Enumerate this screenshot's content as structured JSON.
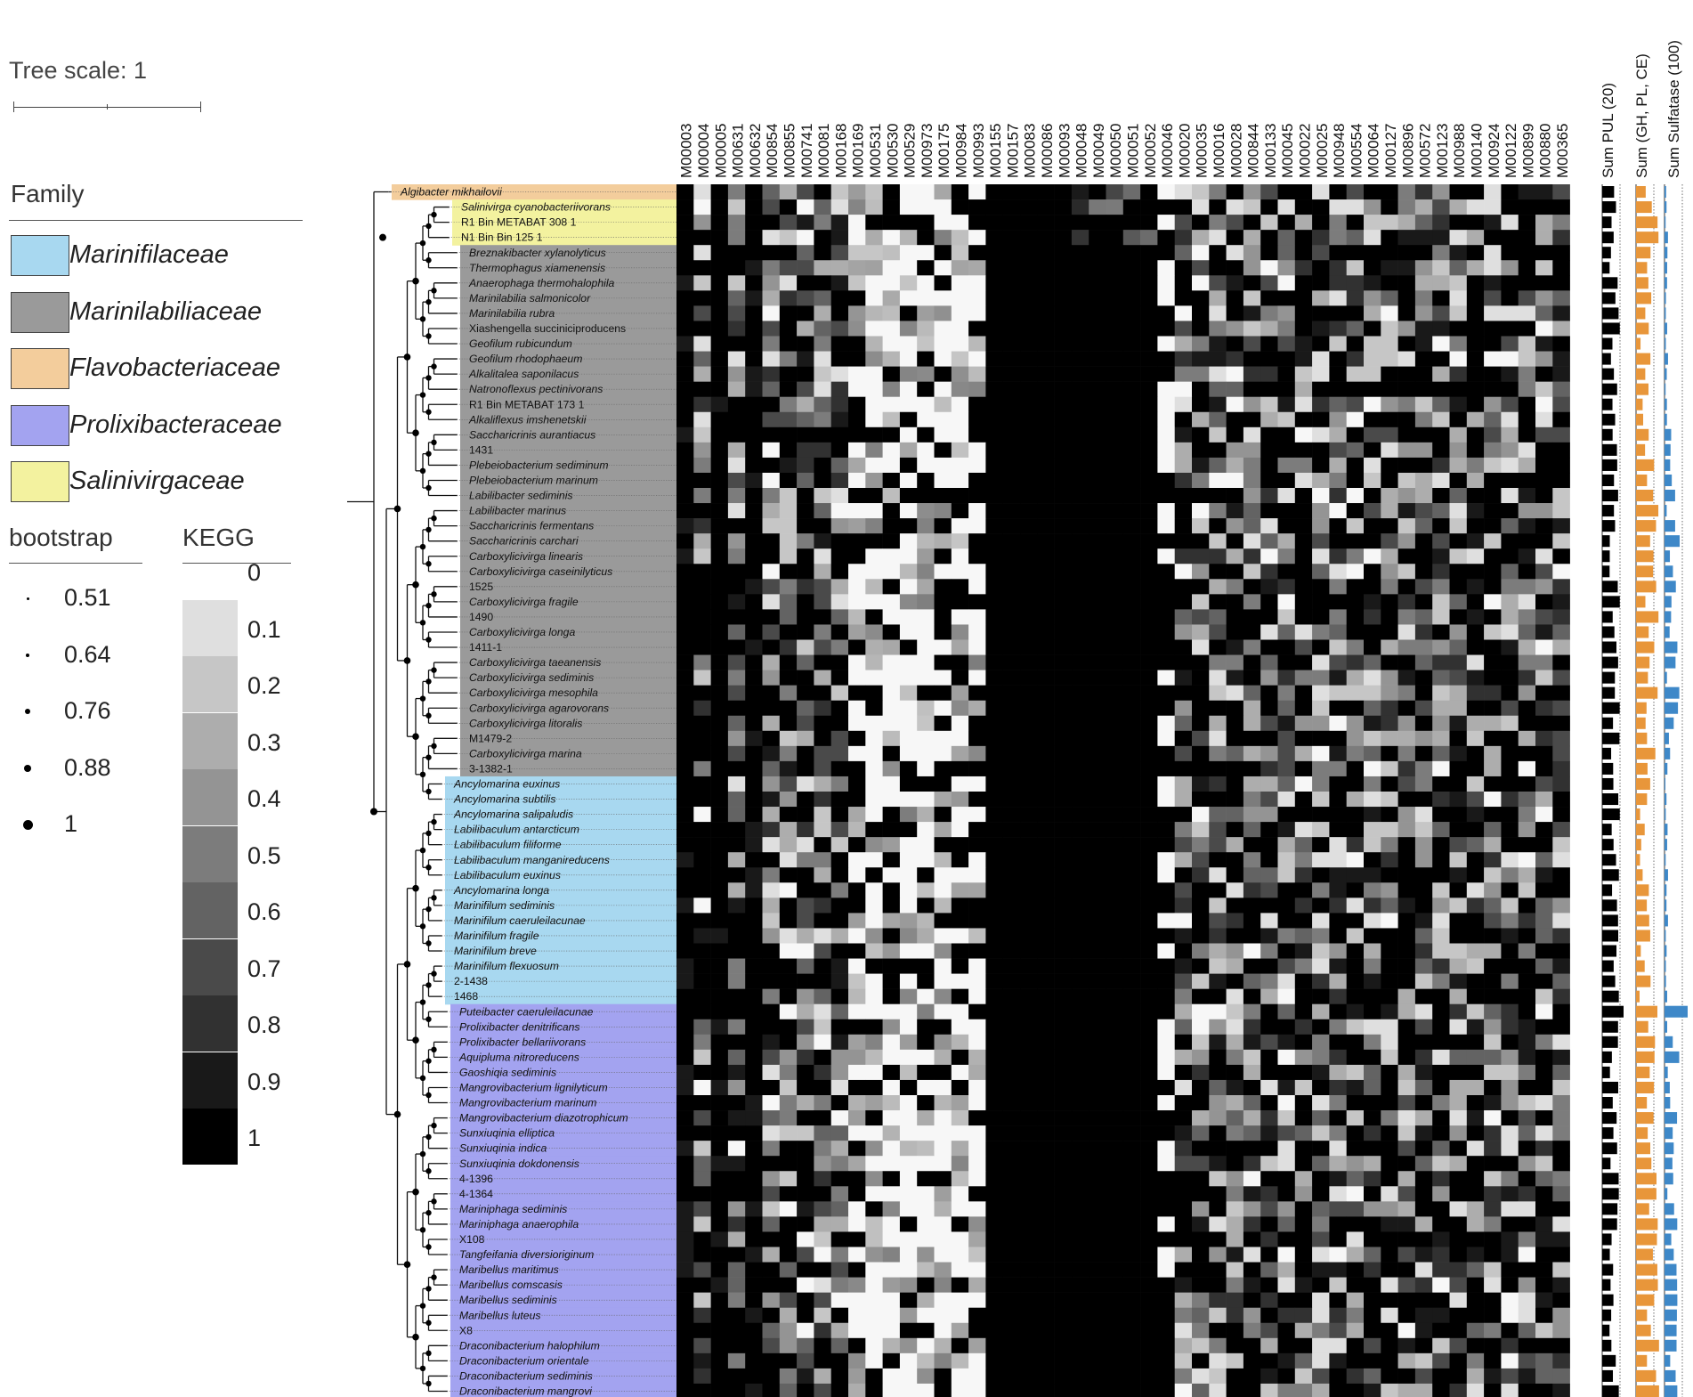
{
  "tree_scale": {
    "label": "Tree scale: 1"
  },
  "family_legend": {
    "title": "Family",
    "items": [
      {
        "name": "Marinifilaceae",
        "color": "#a8d8f0"
      },
      {
        "name": "Marinilabiliaceae",
        "color": "#9a9a9a"
      },
      {
        "name": "Flavobacteriaceae",
        "color": "#f3cd9c"
      },
      {
        "name": "Prolixibacteraceae",
        "color": "#a3a3f0"
      },
      {
        "name": "Salinivirgaceae",
        "color": "#f3f29f"
      }
    ]
  },
  "bootstrap_legend": {
    "title": "bootstrap",
    "items": [
      "0.51",
      "0.64",
      "0.76",
      "0.88",
      "1"
    ]
  },
  "kegg_legend": {
    "title": "KEGG",
    "items": [
      "0",
      "0.1",
      "0.2",
      "0.3",
      "0.4",
      "0.5",
      "0.6",
      "0.7",
      "0.8",
      "0.9",
      "1"
    ]
  },
  "kegg_modules": [
    "M00003",
    "M00004",
    "M00005",
    "M00631",
    "M00632",
    "M00854",
    "M00855",
    "M00741",
    "M00081",
    "M00168",
    "M00169",
    "M00531",
    "M00530",
    "M00529",
    "M00973",
    "M00175",
    "M00984",
    "M00993",
    "M00155",
    "M00157",
    "M00083",
    "M00086",
    "M00093",
    "M00048",
    "M00049",
    "M00050",
    "M00051",
    "M00052",
    "M00046",
    "M00020",
    "M00035",
    "M00016",
    "M00028",
    "M00844",
    "M00133",
    "M00045",
    "M00022",
    "M00025",
    "M00948",
    "M00554",
    "M00064",
    "M00127",
    "M00896",
    "M00572",
    "M00123",
    "M00988",
    "M00140",
    "M00924",
    "M00122",
    "M00899",
    "M00880",
    "M00365"
  ],
  "sum_columns": [
    "Sum PUL (20)",
    "Sum (GH, PL, CE)",
    "Sum Sulfatase (100)"
  ],
  "bar_colors": {
    "pul": "#000000",
    "cazy": "#e8963a",
    "sulfatase": "#3e88c8"
  },
  "taxa": [
    {
      "name": "Algibacter mikhailovii",
      "family": "Flavobacteriaceae"
    },
    {
      "name": "Salinivirga cyanobacteriivorans",
      "family": "Salinivirgaceae"
    },
    {
      "name": "R1 Bin METABAT 308 1",
      "family": "Salinivirgaceae"
    },
    {
      "name": "N1 Bin Bin 125 1",
      "family": "Salinivirgaceae"
    },
    {
      "name": "Breznakibacter xylanolyticus",
      "family": "Marinilabiliaceae"
    },
    {
      "name": "Thermophagus xiamenensis",
      "family": "Marinilabiliaceae"
    },
    {
      "name": "Anaerophaga thermohalophila",
      "family": "Marinilabiliaceae"
    },
    {
      "name": "Marinilabilia salmonicolor",
      "family": "Marinilabiliaceae"
    },
    {
      "name": "Marinilabilia rubra",
      "family": "Marinilabiliaceae"
    },
    {
      "name": "Xiashengella succiniciproducens",
      "family": "Marinilabiliaceae"
    },
    {
      "name": "Geofilum rubicundum",
      "family": "Marinilabiliaceae"
    },
    {
      "name": "Geofilum rhodophaeum",
      "family": "Marinilabiliaceae"
    },
    {
      "name": "Alkalitalea saponilacus",
      "family": "Marinilabiliaceae"
    },
    {
      "name": "Natronoflexus pectinivorans",
      "family": "Marinilabiliaceae"
    },
    {
      "name": "R1 Bin METABAT 173 1",
      "family": "Marinilabiliaceae"
    },
    {
      "name": "Alkaliflexus imshenetskii",
      "family": "Marinilabiliaceae"
    },
    {
      "name": "Saccharicrinis aurantiacus",
      "family": "Marinilabiliaceae"
    },
    {
      "name": "1431",
      "family": "Marinilabiliaceae"
    },
    {
      "name": "Plebeiobacterium sediminum",
      "family": "Marinilabiliaceae"
    },
    {
      "name": "Plebeiobacterium marinum",
      "family": "Marinilabiliaceae"
    },
    {
      "name": "Labilibacter sediminis",
      "family": "Marinilabiliaceae"
    },
    {
      "name": "Labilibacter marinus",
      "family": "Marinilabiliaceae"
    },
    {
      "name": "Saccharicrinis fermentans",
      "family": "Marinilabiliaceae"
    },
    {
      "name": "Saccharicrinis carchari",
      "family": "Marinilabiliaceae"
    },
    {
      "name": "Carboxylicivirga linearis",
      "family": "Marinilabiliaceae"
    },
    {
      "name": "Carboxylicivirga caseinilyticus",
      "family": "Marinilabiliaceae"
    },
    {
      "name": "1525",
      "family": "Marinilabiliaceae"
    },
    {
      "name": "Carboxylicivirga fragile",
      "family": "Marinilabiliaceae"
    },
    {
      "name": "1490",
      "family": "Marinilabiliaceae"
    },
    {
      "name": "Carboxylicivirga longa",
      "family": "Marinilabiliaceae"
    },
    {
      "name": "1411-1",
      "family": "Marinilabiliaceae"
    },
    {
      "name": "Carboxylicivirga taeanensis",
      "family": "Marinilabiliaceae"
    },
    {
      "name": "Carboxylicivirga sediminis",
      "family": "Marinilabiliaceae"
    },
    {
      "name": "Carboxylicivirga mesophila",
      "family": "Marinilabiliaceae"
    },
    {
      "name": "Carboxylicivirga agarovorans",
      "family": "Marinilabiliaceae"
    },
    {
      "name": "Carboxylicivirga litoralis",
      "family": "Marinilabiliaceae"
    },
    {
      "name": "M1479-2",
      "family": "Marinilabiliaceae"
    },
    {
      "name": "Carboxylicivirga marina",
      "family": "Marinilabiliaceae"
    },
    {
      "name": "3-1382-1",
      "family": "Marinilabiliaceae"
    },
    {
      "name": "Ancylomarina euxinus",
      "family": "Marinifilaceae"
    },
    {
      "name": "Ancylomarina subtilis",
      "family": "Marinifilaceae"
    },
    {
      "name": "Ancylomarina salipaludis",
      "family": "Marinifilaceae"
    },
    {
      "name": "Labilibaculum antarcticum",
      "family": "Marinifilaceae"
    },
    {
      "name": "Labilibaculum filiforme",
      "family": "Marinifilaceae"
    },
    {
      "name": "Labilibaculum manganireducens",
      "family": "Marinifilaceae"
    },
    {
      "name": "Labilibaculum euxinus",
      "family": "Marinifilaceae"
    },
    {
      "name": "Ancylomarina longa",
      "family": "Marinifilaceae"
    },
    {
      "name": "Marinifilum sediminis",
      "family": "Marinifilaceae"
    },
    {
      "name": "Marinifilum caeruleilacunae",
      "family": "Marinifilaceae"
    },
    {
      "name": "Marinifilum fragile",
      "family": "Marinifilaceae"
    },
    {
      "name": "Marinifilum breve",
      "family": "Marinifilaceae"
    },
    {
      "name": "Marinifilum flexuosum",
      "family": "Marinifilaceae"
    },
    {
      "name": "2-1438",
      "family": "Marinifilaceae"
    },
    {
      "name": "1468",
      "family": "Marinifilaceae"
    },
    {
      "name": "Puteibacter caeruleilacunae",
      "family": "Prolixibacteraceae"
    },
    {
      "name": "Prolixibacter denitrificans",
      "family": "Prolixibacteraceae"
    },
    {
      "name": "Prolixibacter bellariivorans",
      "family": "Prolixibacteraceae"
    },
    {
      "name": "Aquipluma nitroreducens",
      "family": "Prolixibacteraceae"
    },
    {
      "name": "Gaoshiqia sediminis",
      "family": "Prolixibacteraceae"
    },
    {
      "name": "Mangrovibacterium lignilyticum",
      "family": "Prolixibacteraceae"
    },
    {
      "name": "Mangrovibacterium marinum",
      "family": "Prolixibacteraceae"
    },
    {
      "name": "Mangrovibacterium diazotrophicum",
      "family": "Prolixibacteraceae"
    },
    {
      "name": "Sunxiuqinia elliptica",
      "family": "Prolixibacteraceae"
    },
    {
      "name": "Sunxiuqinia indica",
      "family": "Prolixibacteraceae"
    },
    {
      "name": "Sunxiuqinia dokdonensis",
      "family": "Prolixibacteraceae"
    },
    {
      "name": "4-1396",
      "family": "Prolixibacteraceae"
    },
    {
      "name": "4-1364",
      "family": "Prolixibacteraceae"
    },
    {
      "name": "Mariniphaga sediminis",
      "family": "Prolixibacteraceae"
    },
    {
      "name": "Mariniphaga anaerophila",
      "family": "Prolixibacteraceae"
    },
    {
      "name": "X108",
      "family": "Prolixibacteraceae"
    },
    {
      "name": "Tangfeifania diversioriginum",
      "family": "Prolixibacteraceae"
    },
    {
      "name": "Maribellus maritimus",
      "family": "Prolixibacteraceae"
    },
    {
      "name": "Maribellus comscasis",
      "family": "Prolixibacteraceae"
    },
    {
      "name": "Maribellus sediminis",
      "family": "Prolixibacteraceae"
    },
    {
      "name": "Maribellus luteus",
      "family": "Prolixibacteraceae"
    },
    {
      "name": "X8",
      "family": "Prolixibacteraceae"
    },
    {
      "name": "Draconibacterium halophilum",
      "family": "Prolixibacteraceae"
    },
    {
      "name": "Draconibacterium orientale",
      "family": "Prolixibacteraceae"
    },
    {
      "name": "Draconibacterium sediminis",
      "family": "Prolixibacteraceae"
    },
    {
      "name": "Draconibacterium mangrovi",
      "family": "Prolixibacteraceae"
    }
  ]
}
